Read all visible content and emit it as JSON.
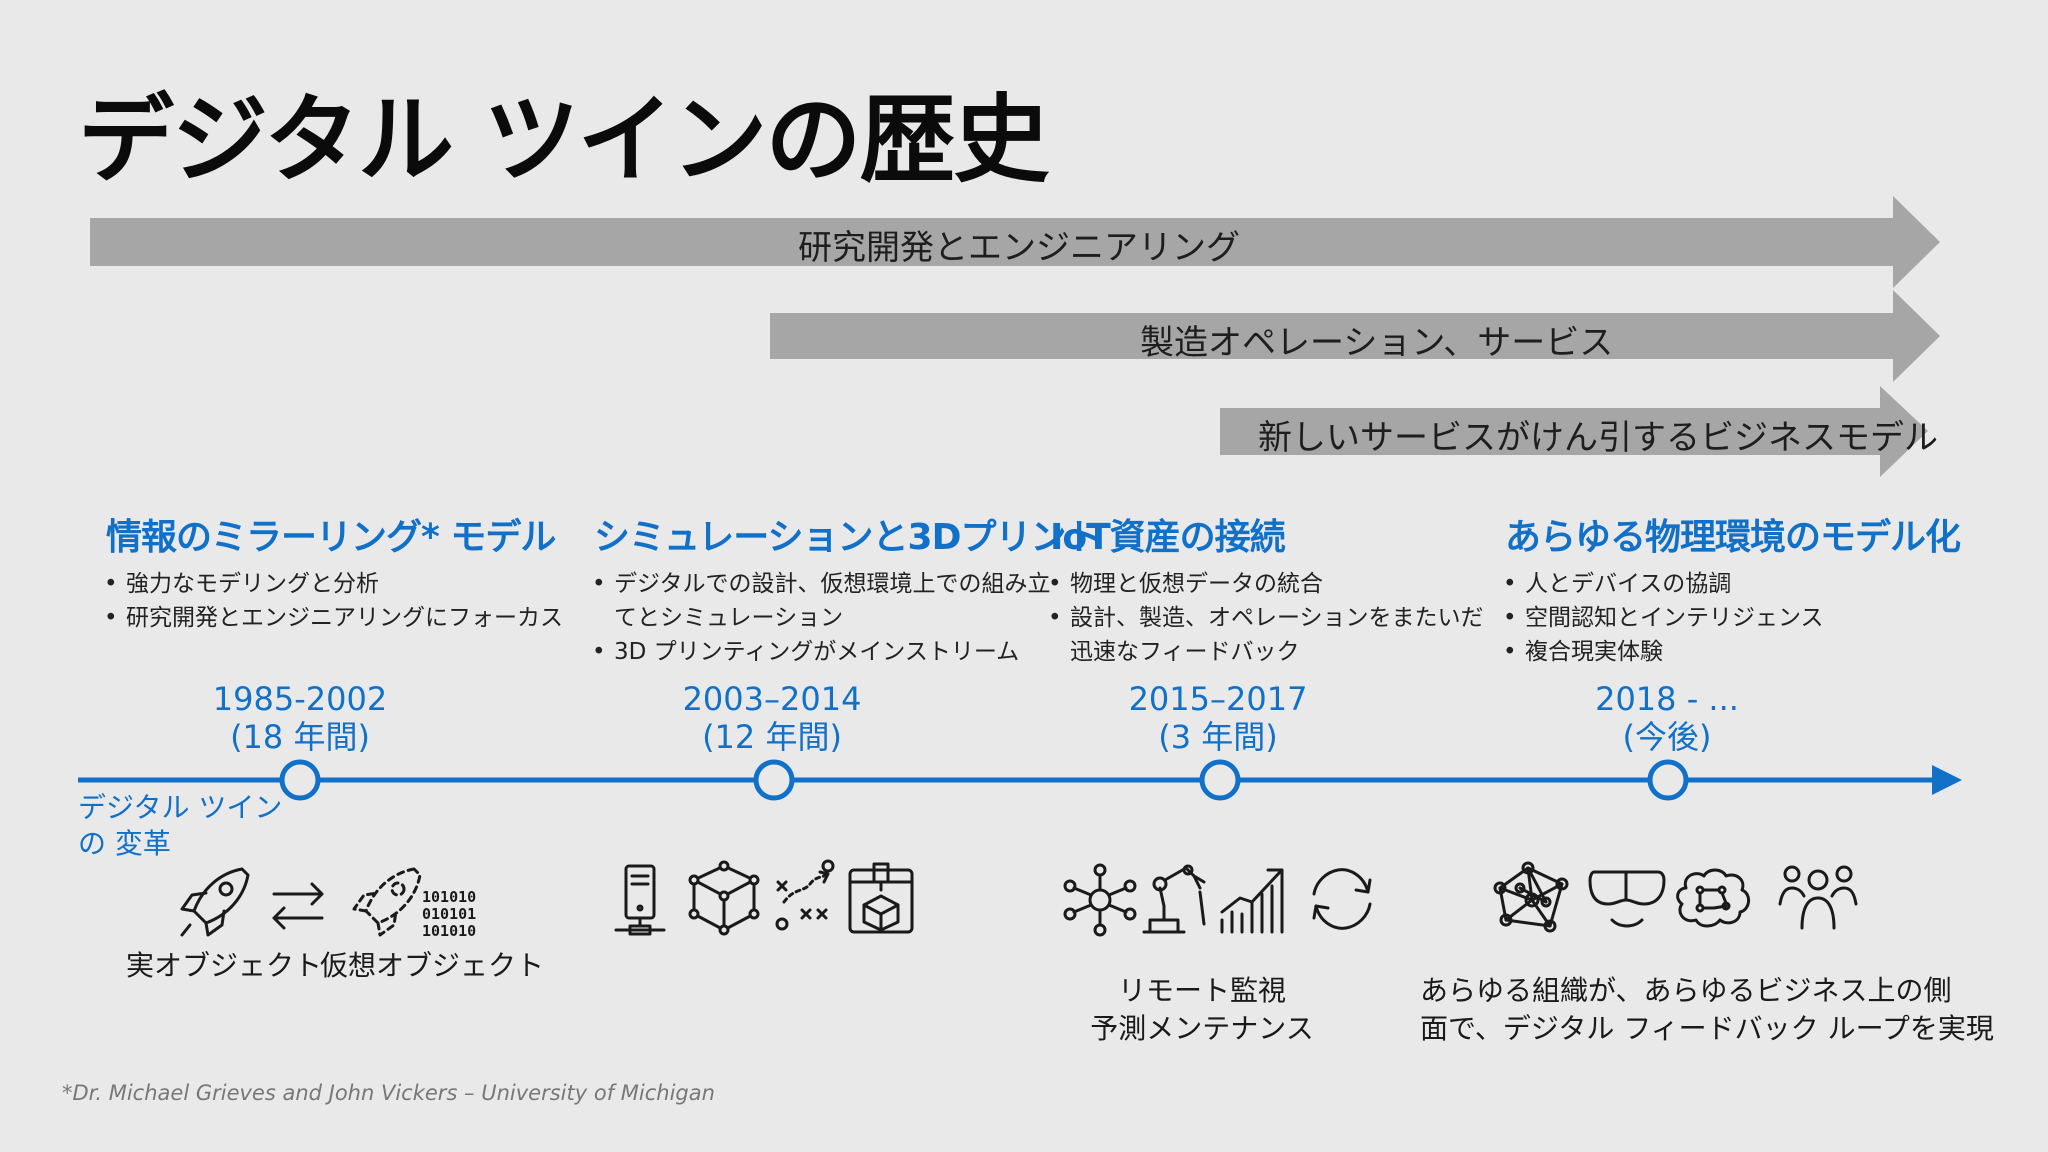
{
  "title": "デジタル ツインの歴史",
  "bands": [
    {
      "label": "研究開発とエンジニアリング"
    },
    {
      "label": "製造オペレーション、サービス"
    },
    {
      "label": "新しいサービスがけん引するビジネスモデル"
    }
  ],
  "eras": [
    {
      "heading": "情報のミラーリング* モデル",
      "bullets": [
        "強力なモデリングと分析",
        "研究開発とエンジニアリングにフォーカス"
      ],
      "years": "1985-2002",
      "duration": "(18 年間)"
    },
    {
      "heading": "シミュレーションと3Dプリント",
      "bullets": [
        "デジタルでの設計、仮想環境上での組み立",
        "てとシミュレーション",
        "3D プリンティングがメインストリーム"
      ],
      "years": "2003–2014",
      "duration": "(12 年間)"
    },
    {
      "heading": "IoT資産の接続",
      "bullets": [
        "物理と仮想データの統合",
        "設計、製造、オペレーションをまたいだ",
        "迅速なフィードバック"
      ],
      "years": "2015–2017",
      "duration": "(3 年間)"
    },
    {
      "heading": "あらゆる物理環境のモデル化",
      "bullets": [
        "人とデバイスの協調",
        "空間認知とインテリジェンス",
        "複合現実体験"
      ],
      "years": "2018 - ...",
      "duration": "(今後)"
    }
  ],
  "axis_label": [
    "デジタル ツイン",
    "の 変革"
  ],
  "captions": {
    "real_object": "実オブジェクト",
    "virtual_object": "仮想オブジェクト",
    "iot_line1": "リモート監視",
    "iot_line2": "予測メンテナンス",
    "future_line1": "あらゆる組織が、あらゆるビジネス上の側",
    "future_line2": "面で、デジタル フィードバック ループを実現"
  },
  "footnote": "*Dr. Michael Grieves and John Vickers – University of Michigan",
  "colors": {
    "accent": "#1170c8",
    "band": "#a6a6a6",
    "background": "#e9e9e9"
  },
  "icons": [
    "rocket-icon",
    "swap-arrows-icon",
    "virtual-rocket-icon",
    "binary-icon",
    "computer-tower-icon",
    "cube-icon",
    "strategy-play-icon",
    "3d-printer-icon",
    "hub-network-icon",
    "robot-arm-icon",
    "growth-chart-icon",
    "refresh-icon",
    "mesh-network-icon",
    "vr-headset-icon",
    "brain-circuit-icon",
    "people-icon"
  ]
}
